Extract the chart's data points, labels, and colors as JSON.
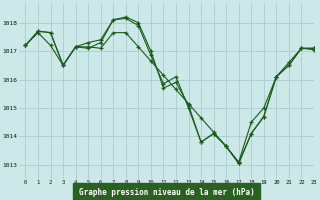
{
  "title": "Graphe pression niveau de la mer (hPa)",
  "bg_color": "#cce8e8",
  "grid_color": "#aacccc",
  "line_color": "#1a5c1a",
  "xlim": [
    -0.5,
    23
  ],
  "ylim": [
    1012.5,
    1018.7
  ],
  "yticks": [
    1013,
    1014,
    1015,
    1016,
    1017,
    1018
  ],
  "xticks": [
    0,
    1,
    2,
    3,
    4,
    5,
    6,
    7,
    8,
    9,
    10,
    11,
    12,
    13,
    14,
    15,
    16,
    17,
    18,
    19,
    20,
    21,
    22,
    23
  ],
  "xlabel_bg": "#2a6020",
  "xlabel_color": "#ffffff",
  "series": [
    {
      "x": [
        0,
        1,
        2,
        3,
        4,
        5,
        6,
        7,
        8,
        9,
        10,
        11,
        12,
        13,
        14,
        15,
        16,
        17,
        18,
        19,
        20,
        21,
        22,
        23
      ],
      "y": [
        1017.2,
        1017.7,
        1017.65,
        1016.5,
        1017.15,
        1017.1,
        1017.3,
        1018.1,
        1018.15,
        1017.9,
        1016.85,
        1015.85,
        1016.1,
        1015.0,
        1013.8,
        1014.1,
        1013.65,
        1013.05,
        1014.1,
        1014.7,
        1016.1,
        1016.5,
        1017.1,
        1017.1
      ]
    },
    {
      "x": [
        0,
        1,
        2,
        3,
        4,
        5,
        6,
        7,
        8,
        9,
        10,
        11,
        12,
        13,
        14,
        15,
        16,
        17,
        18,
        19,
        20,
        21,
        22,
        23
      ],
      "y": [
        1017.2,
        1017.7,
        1017.65,
        1016.5,
        1017.15,
        1017.3,
        1017.4,
        1018.1,
        1018.2,
        1018.0,
        1017.0,
        1015.7,
        1015.9,
        1015.1,
        1013.8,
        1014.1,
        1013.65,
        1013.05,
        1014.1,
        1014.7,
        1016.1,
        1016.5,
        1017.1,
        1017.1
      ]
    },
    {
      "x": [
        0,
        1,
        2,
        3,
        4,
        5,
        6,
        7,
        8,
        9,
        10,
        11,
        12,
        13,
        14,
        15,
        16,
        17,
        18,
        19,
        20,
        21,
        22,
        23
      ],
      "y": [
        1017.2,
        1017.65,
        1017.2,
        1016.5,
        1017.15,
        1017.15,
        1017.1,
        1017.65,
        1017.65,
        1017.15,
        1016.65,
        1016.15,
        1015.65,
        1015.15,
        1014.65,
        1014.15,
        1013.65,
        1013.1,
        1014.5,
        1015.0,
        1016.1,
        1016.6,
        1017.1,
        1017.05
      ]
    }
  ]
}
